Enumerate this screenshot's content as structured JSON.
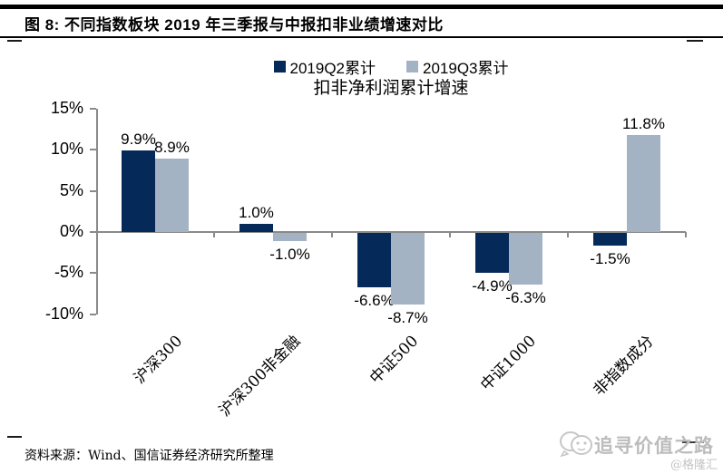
{
  "header": {
    "title": "图 8:  不同指数板块 2019 年三季报与中报扣非业绩增速对比"
  },
  "legend": {
    "items": [
      {
        "label": "2019Q2累计",
        "color": "#052a5a"
      },
      {
        "label": "2019Q3累计",
        "color": "#a4b3c4"
      }
    ]
  },
  "chart_data": {
    "type": "bar",
    "title": "扣非净利润累计增速",
    "categories": [
      "沪深300",
      "沪深300非金融",
      "中证500",
      "中证1000",
      "非指数成分"
    ],
    "series": [
      {
        "name": "2019Q2累计",
        "color": "#052a5a",
        "values": [
          9.9,
          1.0,
          -6.6,
          -4.9,
          -1.5
        ]
      },
      {
        "name": "2019Q3累计",
        "color": "#a4b3c4",
        "values": [
          8.9,
          -1.0,
          -8.7,
          -6.3,
          11.8
        ]
      }
    ],
    "data_labels": [
      [
        "9.9%",
        "1.0%",
        "-6.6%",
        "-4.9%",
        "-1.5%"
      ],
      [
        "8.9%",
        "-1.0%",
        "-8.7%",
        "-6.3%",
        "11.8%"
      ]
    ],
    "ylim": [
      -10,
      15
    ],
    "yticks": [
      {
        "label": "15%",
        "value": 15
      },
      {
        "label": "10%",
        "value": 10
      },
      {
        "label": "5%",
        "value": 5
      },
      {
        "label": "0%",
        "value": 0
      },
      {
        "label": "-5%",
        "value": -5
      },
      {
        "label": "-10%",
        "value": -10
      }
    ],
    "grid": false,
    "legend_position": "top"
  },
  "footer": {
    "source": "资料来源：Wind、国信证券经济研究所整理"
  },
  "watermark": {
    "text": "追寻价值之路",
    "handle": "@格隆汇"
  }
}
